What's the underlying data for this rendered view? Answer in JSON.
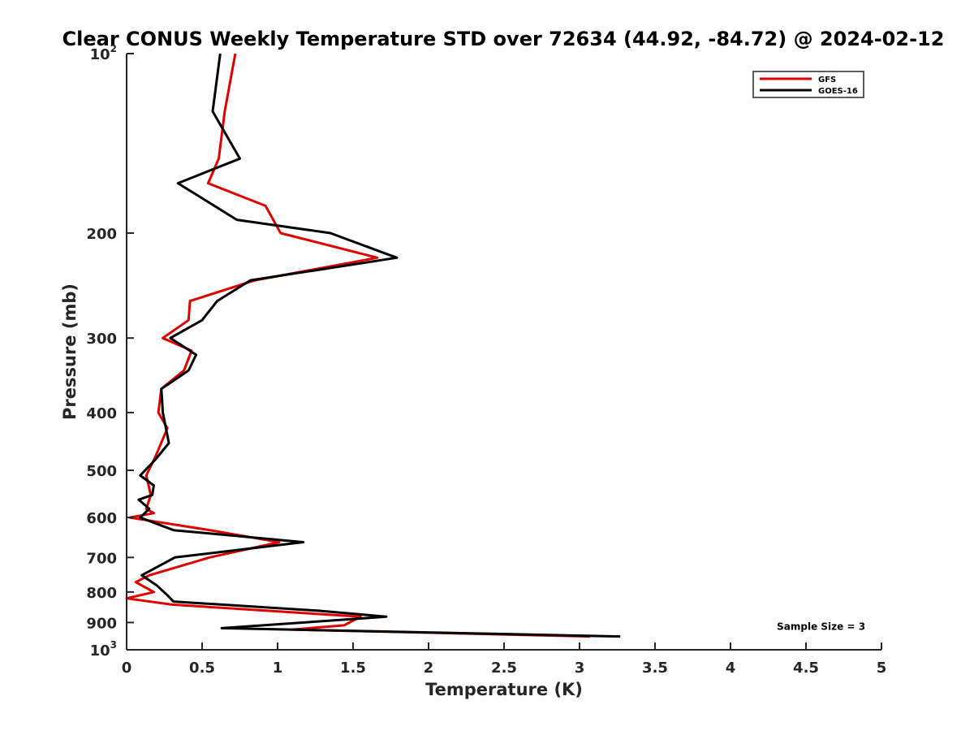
{
  "chart_data": {
    "type": "line",
    "title": "Clear CONUS Weekly Temperature STD over 72634 (44.92, -84.72) @ 2024-02-12",
    "xlabel": "Temperature (K)",
    "ylabel": "Pressure (mb)",
    "xlim": [
      0,
      5
    ],
    "ylim": [
      100,
      1000
    ],
    "y_scale": "log",
    "y_reversed": true,
    "grid": false,
    "legend_position": "top-right",
    "x_ticks": [
      "0",
      "0.5",
      "1",
      "1.5",
      "2",
      "2.5",
      "3",
      "3.5",
      "4",
      "4.5",
      "5"
    ],
    "y_ticks": [
      {
        "value": 100,
        "base": "10",
        "exp": "2"
      },
      {
        "value": 200,
        "label": "200"
      },
      {
        "value": 300,
        "label": "300"
      },
      {
        "value": 400,
        "label": "400"
      },
      {
        "value": 500,
        "label": "500"
      },
      {
        "value": 600,
        "label": "600"
      },
      {
        "value": 700,
        "label": "700"
      },
      {
        "value": 800,
        "label": "800"
      },
      {
        "value": 900,
        "label": "900"
      },
      {
        "value": 1000,
        "base": "10",
        "exp": "3"
      }
    ],
    "series": [
      {
        "name": "GFS",
        "color": "#e00000",
        "points": [
          [
            0.72,
            100
          ],
          [
            0.65,
            125
          ],
          [
            0.61,
            150
          ],
          [
            0.54,
            165
          ],
          [
            0.92,
            180
          ],
          [
            1.02,
            200
          ],
          [
            1.66,
            220
          ],
          [
            0.85,
            240
          ],
          [
            0.42,
            260
          ],
          [
            0.41,
            280
          ],
          [
            0.24,
            300
          ],
          [
            0.43,
            315
          ],
          [
            0.38,
            340
          ],
          [
            0.23,
            365
          ],
          [
            0.21,
            400
          ],
          [
            0.27,
            425
          ],
          [
            0.19,
            475
          ],
          [
            0.13,
            510
          ],
          [
            0.16,
            550
          ],
          [
            0.13,
            580
          ],
          [
            0.18,
            590
          ],
          [
            0.02,
            600
          ],
          [
            0.55,
            630
          ],
          [
            1.01,
            660
          ],
          [
            0.55,
            700
          ],
          [
            0.15,
            750
          ],
          [
            0.06,
            770
          ],
          [
            0.18,
            800
          ],
          [
            0.0,
            820
          ],
          [
            0.3,
            840
          ],
          [
            1.55,
            880
          ],
          [
            1.44,
            910
          ],
          [
            1.1,
            925
          ],
          [
            3.07,
            950
          ]
        ]
      },
      {
        "name": "GOES-16",
        "color": "#000000",
        "points": [
          [
            0.62,
            100
          ],
          [
            0.57,
            125
          ],
          [
            0.75,
            150
          ],
          [
            0.34,
            165
          ],
          [
            0.73,
            190
          ],
          [
            1.35,
            200
          ],
          [
            1.79,
            220
          ],
          [
            0.82,
            240
          ],
          [
            0.6,
            260
          ],
          [
            0.5,
            280
          ],
          [
            0.29,
            300
          ],
          [
            0.46,
            320
          ],
          [
            0.41,
            340
          ],
          [
            0.23,
            365
          ],
          [
            0.24,
            400
          ],
          [
            0.28,
            450
          ],
          [
            0.19,
            480
          ],
          [
            0.09,
            510
          ],
          [
            0.18,
            530
          ],
          [
            0.17,
            550
          ],
          [
            0.08,
            560
          ],
          [
            0.15,
            580
          ],
          [
            0.09,
            600
          ],
          [
            0.31,
            630
          ],
          [
            1.17,
            660
          ],
          [
            0.32,
            700
          ],
          [
            0.1,
            750
          ],
          [
            0.2,
            780
          ],
          [
            0.27,
            810
          ],
          [
            0.31,
            830
          ],
          [
            1.27,
            860
          ],
          [
            1.72,
            880
          ],
          [
            0.63,
            920
          ],
          [
            3.27,
            950
          ]
        ]
      }
    ],
    "annotations": [
      {
        "text": "Sample Size = 3",
        "x": 4.6,
        "y": 920
      }
    ]
  }
}
